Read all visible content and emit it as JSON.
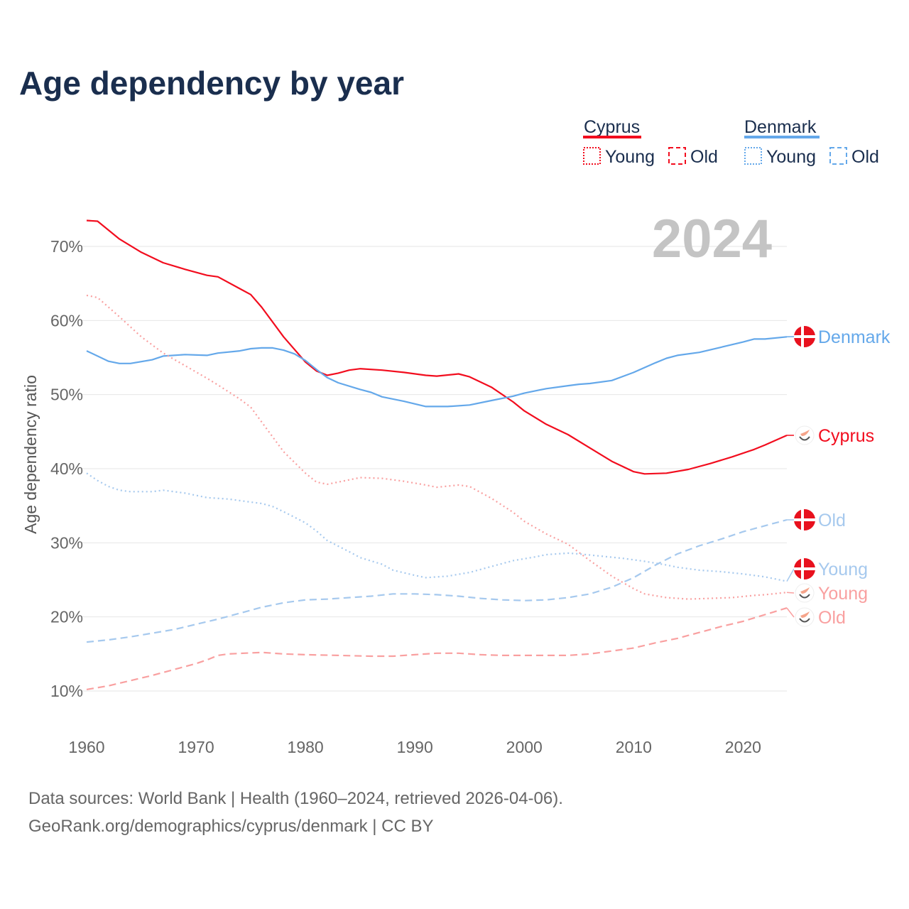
{
  "title": "Age dependency by year",
  "legend": {
    "groups": [
      {
        "name": "Cyprus",
        "color": "#f20d1e",
        "items": [
          "Young",
          "Old"
        ]
      },
      {
        "name": "Denmark",
        "color": "#64a8ea",
        "items": [
          "Young",
          "Old"
        ]
      }
    ]
  },
  "watermark_year": "2024",
  "footer": {
    "line1": "Data sources: World Bank | Health (1960–2024, retrieved 2026-04-06).",
    "line2": "GeoRank.org/demographics/cyprus/denmark | CC BY"
  },
  "chart_data": {
    "type": "line",
    "title": "Age dependency by year",
    "xlabel": "",
    "ylabel": "Age dependency ratio",
    "xlim": [
      1960,
      2024
    ],
    "ylim": [
      10,
      70
    ],
    "x_ticks": [
      "1960",
      "1970",
      "1980",
      "1990",
      "2000",
      "2010",
      "2020"
    ],
    "y_ticks": [
      "10%",
      "20%",
      "30%",
      "40%",
      "50%",
      "60%",
      "70%"
    ],
    "grid": true,
    "legend_position": "top-right",
    "series": [
      {
        "name": "Cyprus",
        "end_label": "Cyprus",
        "color": "#f20d1e",
        "style": "solid",
        "flag": "cyprus",
        "points": [
          [
            1960,
            73.5
          ],
          [
            1961,
            73.4
          ],
          [
            1963,
            71
          ],
          [
            1965,
            69.2
          ],
          [
            1967,
            67.8
          ],
          [
            1969,
            66.9
          ],
          [
            1971,
            66.1
          ],
          [
            1972,
            65.9
          ],
          [
            1974,
            64.3
          ],
          [
            1975,
            63.5
          ],
          [
            1976,
            61.8
          ],
          [
            1978,
            57.8
          ],
          [
            1980,
            54.4
          ],
          [
            1981,
            53.2
          ],
          [
            1982,
            52.6
          ],
          [
            1983,
            52.9
          ],
          [
            1984,
            53.3
          ],
          [
            1985,
            53.5
          ],
          [
            1987,
            53.3
          ],
          [
            1989,
            53.0
          ],
          [
            1991,
            52.6
          ],
          [
            1992,
            52.5
          ],
          [
            1994,
            52.8
          ],
          [
            1995,
            52.4
          ],
          [
            1997,
            51.0
          ],
          [
            1999,
            49.0
          ],
          [
            2000,
            47.8
          ],
          [
            2002,
            46.0
          ],
          [
            2004,
            44.6
          ],
          [
            2006,
            42.8
          ],
          [
            2008,
            41.0
          ],
          [
            2010,
            39.6
          ],
          [
            2011,
            39.3
          ],
          [
            2013,
            39.4
          ],
          [
            2015,
            39.9
          ],
          [
            2017,
            40.7
          ],
          [
            2019,
            41.6
          ],
          [
            2021,
            42.6
          ],
          [
            2022,
            43.2
          ],
          [
            2024,
            44.5
          ]
        ]
      },
      {
        "name": "Denmark",
        "end_label": "Denmark",
        "color": "#64a8ea",
        "style": "solid",
        "flag": "denmark",
        "points": [
          [
            1960,
            55.9
          ],
          [
            1962,
            54.5
          ],
          [
            1963,
            54.2
          ],
          [
            1964,
            54.2
          ],
          [
            1966,
            54.7
          ],
          [
            1967,
            55.2
          ],
          [
            1969,
            55.4
          ],
          [
            1971,
            55.3
          ],
          [
            1972,
            55.6
          ],
          [
            1974,
            55.9
          ],
          [
            1975,
            56.2
          ],
          [
            1976,
            56.3
          ],
          [
            1977,
            56.3
          ],
          [
            1978,
            56.0
          ],
          [
            1979,
            55.5
          ],
          [
            1980,
            54.6
          ],
          [
            1981,
            53.4
          ],
          [
            1982,
            52.3
          ],
          [
            1983,
            51.6
          ],
          [
            1985,
            50.7
          ],
          [
            1986,
            50.3
          ],
          [
            1987,
            49.7
          ],
          [
            1989,
            49.1
          ],
          [
            1991,
            48.4
          ],
          [
            1993,
            48.4
          ],
          [
            1995,
            48.6
          ],
          [
            1997,
            49.2
          ],
          [
            1999,
            49.8
          ],
          [
            2000,
            50.2
          ],
          [
            2002,
            50.8
          ],
          [
            2004,
            51.2
          ],
          [
            2005,
            51.4
          ],
          [
            2006,
            51.5
          ],
          [
            2008,
            51.9
          ],
          [
            2010,
            53.0
          ],
          [
            2012,
            54.3
          ],
          [
            2013,
            54.9
          ],
          [
            2014,
            55.3
          ],
          [
            2016,
            55.7
          ],
          [
            2018,
            56.4
          ],
          [
            2020,
            57.1
          ],
          [
            2021,
            57.5
          ],
          [
            2022,
            57.5
          ],
          [
            2024,
            57.8
          ]
        ]
      },
      {
        "name": "Cyprus Young",
        "end_label": "Young",
        "color": "#f9a0a0",
        "style": "dotted",
        "flag": "cyprus",
        "points": [
          [
            1960,
            63.4
          ],
          [
            1961,
            63.1
          ],
          [
            1963,
            60.5
          ],
          [
            1965,
            57.8
          ],
          [
            1967,
            55.6
          ],
          [
            1969,
            53.9
          ],
          [
            1971,
            52.2
          ],
          [
            1972,
            51.3
          ],
          [
            1974,
            49.4
          ],
          [
            1975,
            48.3
          ],
          [
            1976,
            46.3
          ],
          [
            1978,
            42.3
          ],
          [
            1980,
            39.4
          ],
          [
            1981,
            38.2
          ],
          [
            1982,
            37.9
          ],
          [
            1984,
            38.5
          ],
          [
            1985,
            38.8
          ],
          [
            1987,
            38.7
          ],
          [
            1989,
            38.3
          ],
          [
            1991,
            37.8
          ],
          [
            1992,
            37.5
          ],
          [
            1994,
            37.8
          ],
          [
            1995,
            37.6
          ],
          [
            1997,
            36.0
          ],
          [
            1999,
            34.1
          ],
          [
            2000,
            32.9
          ],
          [
            2002,
            31.2
          ],
          [
            2004,
            29.8
          ],
          [
            2006,
            27.6
          ],
          [
            2008,
            25.5
          ],
          [
            2010,
            23.8
          ],
          [
            2011,
            23.1
          ],
          [
            2013,
            22.6
          ],
          [
            2015,
            22.4
          ],
          [
            2017,
            22.5
          ],
          [
            2019,
            22.6
          ],
          [
            2021,
            22.9
          ],
          [
            2022,
            23.0
          ],
          [
            2024,
            23.3
          ]
        ]
      },
      {
        "name": "Cyprus Old",
        "end_label": "Old",
        "color": "#f9a0a0",
        "style": "dashed",
        "flag": "cyprus",
        "points": [
          [
            1960,
            10.2
          ],
          [
            1962,
            10.7
          ],
          [
            1964,
            11.4
          ],
          [
            1966,
            12.1
          ],
          [
            1968,
            12.9
          ],
          [
            1970,
            13.7
          ],
          [
            1971,
            14.2
          ],
          [
            1972,
            14.8
          ],
          [
            1973,
            15.0
          ],
          [
            1976,
            15.2
          ],
          [
            1978,
            15.0
          ],
          [
            1980,
            14.9
          ],
          [
            1983,
            14.8
          ],
          [
            1986,
            14.7
          ],
          [
            1988,
            14.7
          ],
          [
            1990,
            14.9
          ],
          [
            1992,
            15.1
          ],
          [
            1994,
            15.1
          ],
          [
            1996,
            14.9
          ],
          [
            1998,
            14.8
          ],
          [
            2002,
            14.8
          ],
          [
            2004,
            14.8
          ],
          [
            2006,
            15.0
          ],
          [
            2008,
            15.4
          ],
          [
            2010,
            15.8
          ],
          [
            2012,
            16.5
          ],
          [
            2014,
            17.1
          ],
          [
            2016,
            17.9
          ],
          [
            2018,
            18.7
          ],
          [
            2020,
            19.4
          ],
          [
            2022,
            20.3
          ],
          [
            2024,
            21.2
          ]
        ]
      },
      {
        "name": "Denmark Young",
        "end_label": "Young",
        "color": "#a6c9ee",
        "style": "dotted",
        "flag": "denmark",
        "points": [
          [
            1960,
            39.4
          ],
          [
            1961,
            38.4
          ],
          [
            1962,
            37.6
          ],
          [
            1963,
            37.1
          ],
          [
            1964,
            36.9
          ],
          [
            1966,
            36.9
          ],
          [
            1967,
            37.1
          ],
          [
            1969,
            36.7
          ],
          [
            1971,
            36.1
          ],
          [
            1973,
            35.9
          ],
          [
            1975,
            35.5
          ],
          [
            1976,
            35.3
          ],
          [
            1977,
            34.9
          ],
          [
            1978,
            34.2
          ],
          [
            1980,
            32.7
          ],
          [
            1981,
            31.6
          ],
          [
            1982,
            30.3
          ],
          [
            1984,
            28.8
          ],
          [
            1985,
            28.0
          ],
          [
            1987,
            27.1
          ],
          [
            1988,
            26.3
          ],
          [
            1990,
            25.6
          ],
          [
            1991,
            25.3
          ],
          [
            1993,
            25.5
          ],
          [
            1995,
            26.0
          ],
          [
            1997,
            26.8
          ],
          [
            1999,
            27.6
          ],
          [
            2001,
            28.1
          ],
          [
            2002,
            28.4
          ],
          [
            2004,
            28.6
          ],
          [
            2005,
            28.5
          ],
          [
            2007,
            28.2
          ],
          [
            2009,
            27.9
          ],
          [
            2011,
            27.5
          ],
          [
            2013,
            27.0
          ],
          [
            2014,
            26.7
          ],
          [
            2016,
            26.3
          ],
          [
            2018,
            26.1
          ],
          [
            2020,
            25.8
          ],
          [
            2022,
            25.4
          ],
          [
            2024,
            24.8
          ]
        ]
      },
      {
        "name": "Denmark Old",
        "end_label": "Old",
        "color": "#a6c9ee",
        "style": "dashed",
        "flag": "denmark",
        "points": [
          [
            1960,
            16.6
          ],
          [
            1962,
            16.9
          ],
          [
            1964,
            17.3
          ],
          [
            1966,
            17.8
          ],
          [
            1968,
            18.3
          ],
          [
            1970,
            19.0
          ],
          [
            1972,
            19.7
          ],
          [
            1974,
            20.5
          ],
          [
            1976,
            21.3
          ],
          [
            1978,
            21.9
          ],
          [
            1980,
            22.3
          ],
          [
            1982,
            22.4
          ],
          [
            1984,
            22.6
          ],
          [
            1986,
            22.8
          ],
          [
            1988,
            23.1
          ],
          [
            1990,
            23.1
          ],
          [
            1992,
            23.0
          ],
          [
            1994,
            22.8
          ],
          [
            1996,
            22.5
          ],
          [
            1998,
            22.3
          ],
          [
            2000,
            22.2
          ],
          [
            2002,
            22.3
          ],
          [
            2004,
            22.6
          ],
          [
            2006,
            23.1
          ],
          [
            2008,
            24.0
          ],
          [
            2010,
            25.3
          ],
          [
            2012,
            27.0
          ],
          [
            2014,
            28.5
          ],
          [
            2016,
            29.6
          ],
          [
            2018,
            30.5
          ],
          [
            2020,
            31.5
          ],
          [
            2022,
            32.3
          ],
          [
            2024,
            33.1
          ]
        ]
      }
    ]
  }
}
